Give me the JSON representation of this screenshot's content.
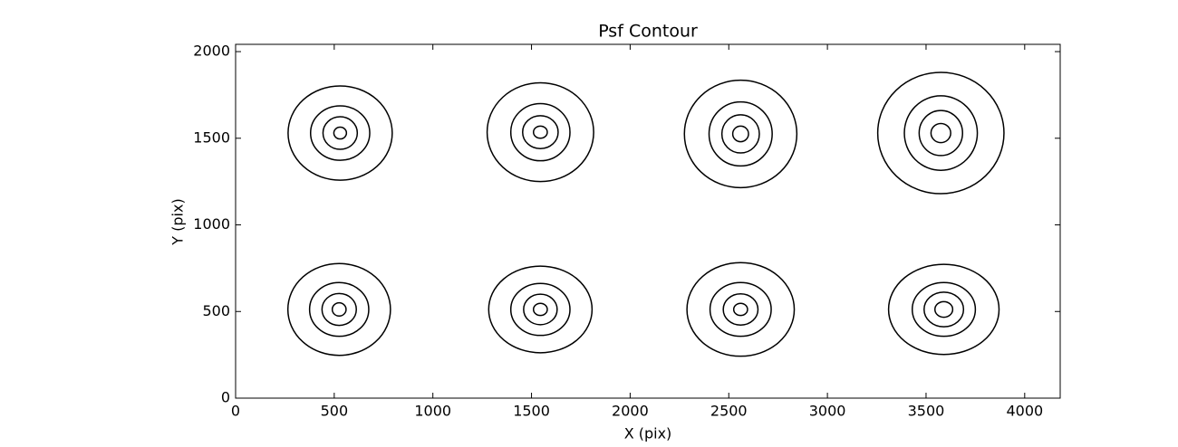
{
  "chart_data": {
    "type": "contour",
    "title": "Psf Contour",
    "xlabel": "X (pix)",
    "ylabel": "Y (pix)",
    "xlim": [
      0,
      4180
    ],
    "ylim": [
      0,
      2042
    ],
    "xticks": [
      0,
      500,
      1000,
      1500,
      2000,
      2500,
      3000,
      3500,
      4000
    ],
    "yticks": [
      0,
      500,
      1000,
      1500,
      2000
    ],
    "color": "#000000",
    "contours": [
      {
        "x": 530,
        "y": 1530,
        "rx": [
          264,
          150,
          87,
          32
        ],
        "ry": [
          272,
          157,
          94,
          34
        ]
      },
      {
        "x": 1545,
        "y": 1535,
        "rx": [
          270,
          150,
          90,
          35
        ],
        "ry": [
          285,
          165,
          95,
          35
        ]
      },
      {
        "x": 2560,
        "y": 1525,
        "rx": [
          285,
          160,
          95,
          40
        ],
        "ry": [
          310,
          185,
          110,
          45
        ]
      },
      {
        "x": 3575,
        "y": 1530,
        "rx": [
          320,
          185,
          110,
          50
        ],
        "ry": [
          350,
          215,
          130,
          55
        ]
      },
      {
        "x": 525,
        "y": 512,
        "rx": [
          260,
          150,
          87,
          35
        ],
        "ry": [
          265,
          155,
          92,
          38
        ]
      },
      {
        "x": 1545,
        "y": 512,
        "rx": [
          262,
          150,
          85,
          35
        ],
        "ry": [
          250,
          150,
          88,
          35
        ]
      },
      {
        "x": 2560,
        "y": 512,
        "rx": [
          272,
          155,
          88,
          35
        ],
        "ry": [
          270,
          155,
          90,
          35
        ]
      },
      {
        "x": 3590,
        "y": 512,
        "rx": [
          280,
          160,
          100,
          45
        ],
        "ry": [
          260,
          155,
          100,
          45
        ]
      }
    ]
  }
}
